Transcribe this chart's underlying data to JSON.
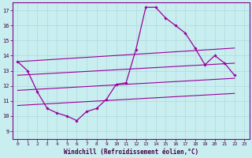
{
  "xlabel": "Windchill (Refroidissement éolien,°C)",
  "background_color": "#c8eef0",
  "grid_color": "#b0d8dc",
  "line_color": "#990099",
  "x_ticks": [
    0,
    1,
    2,
    3,
    4,
    5,
    6,
    7,
    8,
    9,
    10,
    11,
    12,
    13,
    14,
    15,
    16,
    17,
    18,
    19,
    20,
    21,
    22,
    23
  ],
  "y_ticks": [
    9,
    10,
    11,
    12,
    13,
    14,
    15,
    16,
    17
  ],
  "ylim": [
    8.5,
    17.5
  ],
  "xlim": [
    -0.5,
    23.5
  ],
  "main_x": [
    0,
    1,
    2,
    3,
    4,
    5,
    6,
    7,
    8,
    9,
    10,
    11,
    12,
    13,
    14,
    15,
    16,
    17,
    18,
    19,
    20,
    21,
    22
  ],
  "main_y": [
    13.6,
    13.0,
    11.6,
    10.5,
    10.2,
    10.0,
    9.7,
    10.3,
    10.5,
    11.1,
    12.1,
    12.2,
    14.4,
    17.2,
    17.2,
    16.5,
    16.0,
    15.5,
    14.5,
    13.4,
    14.0,
    13.5,
    12.7
  ],
  "line1_x": [
    0,
    22
  ],
  "line1_y": [
    13.6,
    14.5
  ],
  "line2_x": [
    0,
    22
  ],
  "line2_y": [
    12.7,
    13.5
  ],
  "line3_x": [
    0,
    22
  ],
  "line3_y": [
    11.7,
    12.5
  ],
  "line4_x": [
    0,
    22
  ],
  "line4_y": [
    10.7,
    11.5
  ],
  "xlabel_fontsize": 5.5,
  "tick_fontsize": 5,
  "spine_color": "#880088"
}
